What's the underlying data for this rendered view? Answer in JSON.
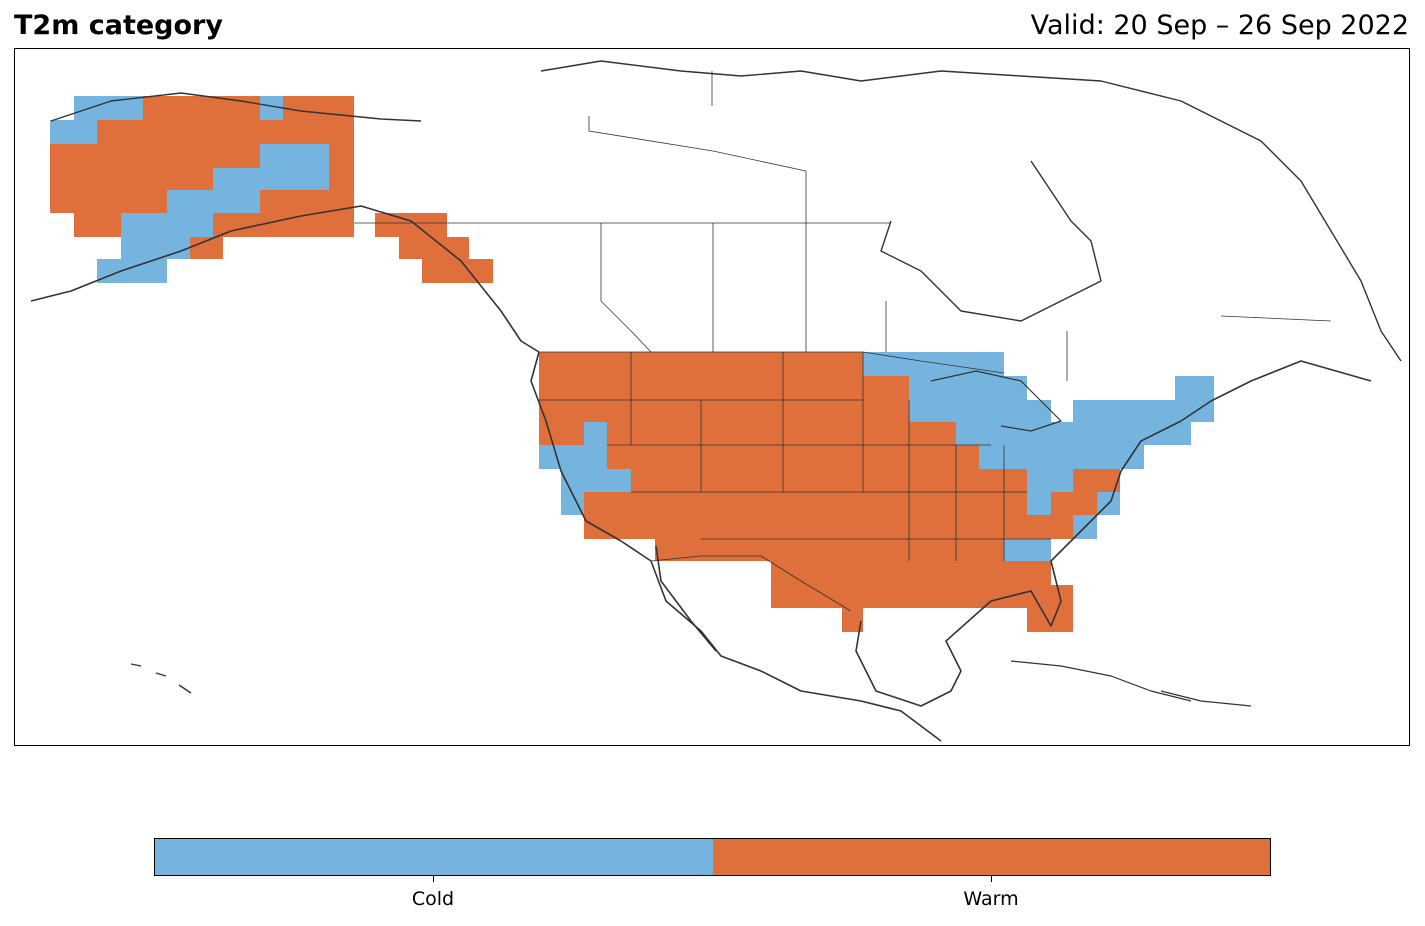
{
  "title": "T2m category",
  "valid": "Valid: 20 Sep – 26 Sep 2022",
  "legend": {
    "categories": [
      {
        "label": "Cold",
        "color": "#76b4e0"
      },
      {
        "label": "Warm",
        "color": "#e0703b"
      }
    ]
  },
  "colors": {
    "coast": "#333333",
    "frame": "#000000"
  }
}
